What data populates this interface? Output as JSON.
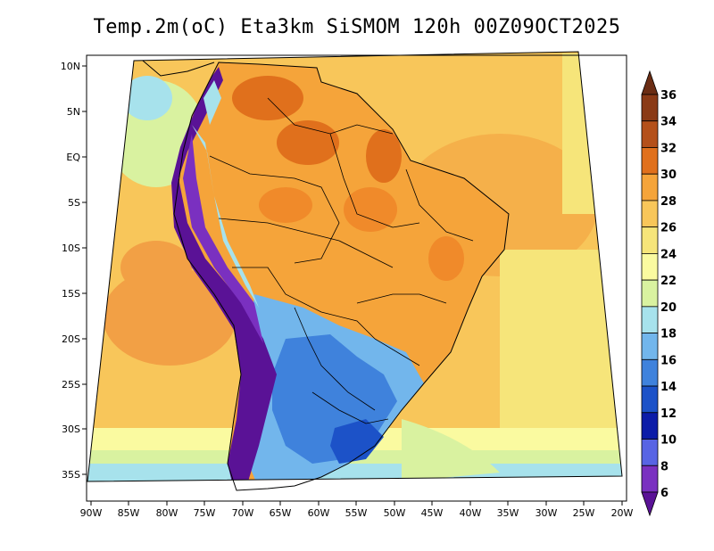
{
  "title": "Temp.2m(oC) Eta3km SiSMOM 120h 00Z09OCT2025",
  "lat_labels": [
    "10N",
    "5N",
    "EQ",
    "5S",
    "10S",
    "15S",
    "20S",
    "25S",
    "30S",
    "35S"
  ],
  "lon_labels": [
    "90W",
    "85W",
    "80W",
    "75W",
    "70W",
    "65W",
    "60W",
    "55W",
    "50W",
    "45W",
    "40W",
    "35W",
    "30W",
    "25W",
    "20W"
  ],
  "colorbar": {
    "levels": [
      "36",
      "34",
      "32",
      "30",
      "28",
      "26",
      "24",
      "22",
      "20",
      "18",
      "16",
      "14",
      "12",
      "10",
      "8",
      "6"
    ],
    "colors": [
      "#6b2d14",
      "#8a3a16",
      "#b4501a",
      "#e0701c",
      "#f5a43a",
      "#f8c65a",
      "#f6e57a",
      "#fafaa0",
      "#d9f2a0",
      "#a7e2ec",
      "#72b6ec",
      "#3f82dc",
      "#1c52c8",
      "#0c1ca8",
      "#5864e4",
      "#7a30c0",
      "#5a1296"
    ]
  }
}
